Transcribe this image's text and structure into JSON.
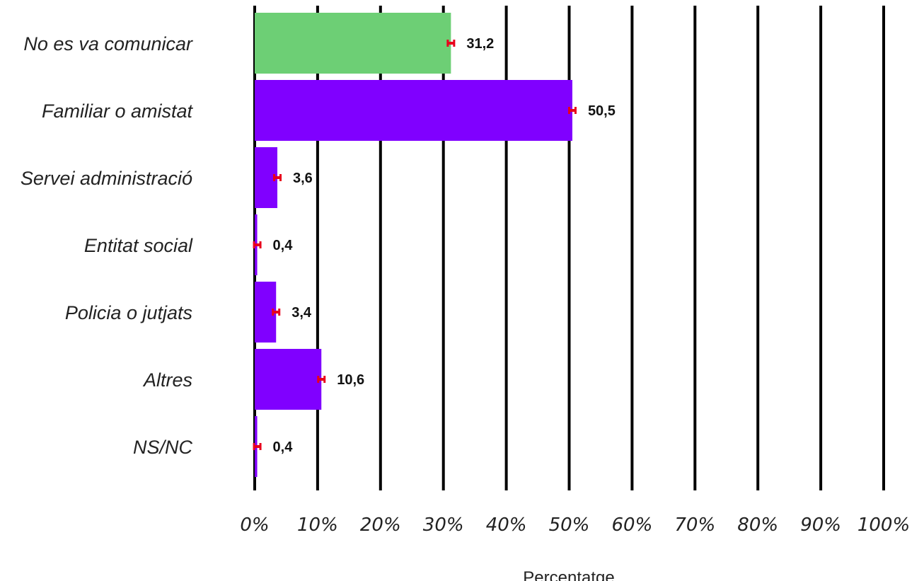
{
  "chart_data": {
    "type": "bar",
    "orientation": "horizontal",
    "categories": [
      "No es va comunicar",
      "Familiar o amistat",
      "Servei administració",
      "Entitat social",
      "Policia o jutjats",
      "Altres",
      "NS/NC"
    ],
    "values": [
      31.2,
      50.5,
      3.6,
      0.4,
      3.4,
      10.6,
      0.4
    ],
    "value_labels": [
      "31,2",
      "50,5",
      "3,6",
      "0,4",
      "3,4",
      "10,6",
      "0,4"
    ],
    "bar_colors": [
      "#6dcf75",
      "#8000ff",
      "#8000ff",
      "#8000ff",
      "#8000ff",
      "#8000ff",
      "#8000ff"
    ],
    "error_bar_color": "#e8001c",
    "xlim": [
      0,
      100
    ],
    "xticks": [
      0,
      10,
      20,
      30,
      40,
      50,
      60,
      70,
      80,
      90,
      100
    ],
    "xtick_labels": [
      "0%",
      "10%",
      "20%",
      "30%",
      "40%",
      "50%",
      "60%",
      "70%",
      "80%",
      "90%",
      "100%"
    ],
    "xlabel": "Percentatge",
    "title": "",
    "grid": "vertical",
    "legend": "none"
  }
}
